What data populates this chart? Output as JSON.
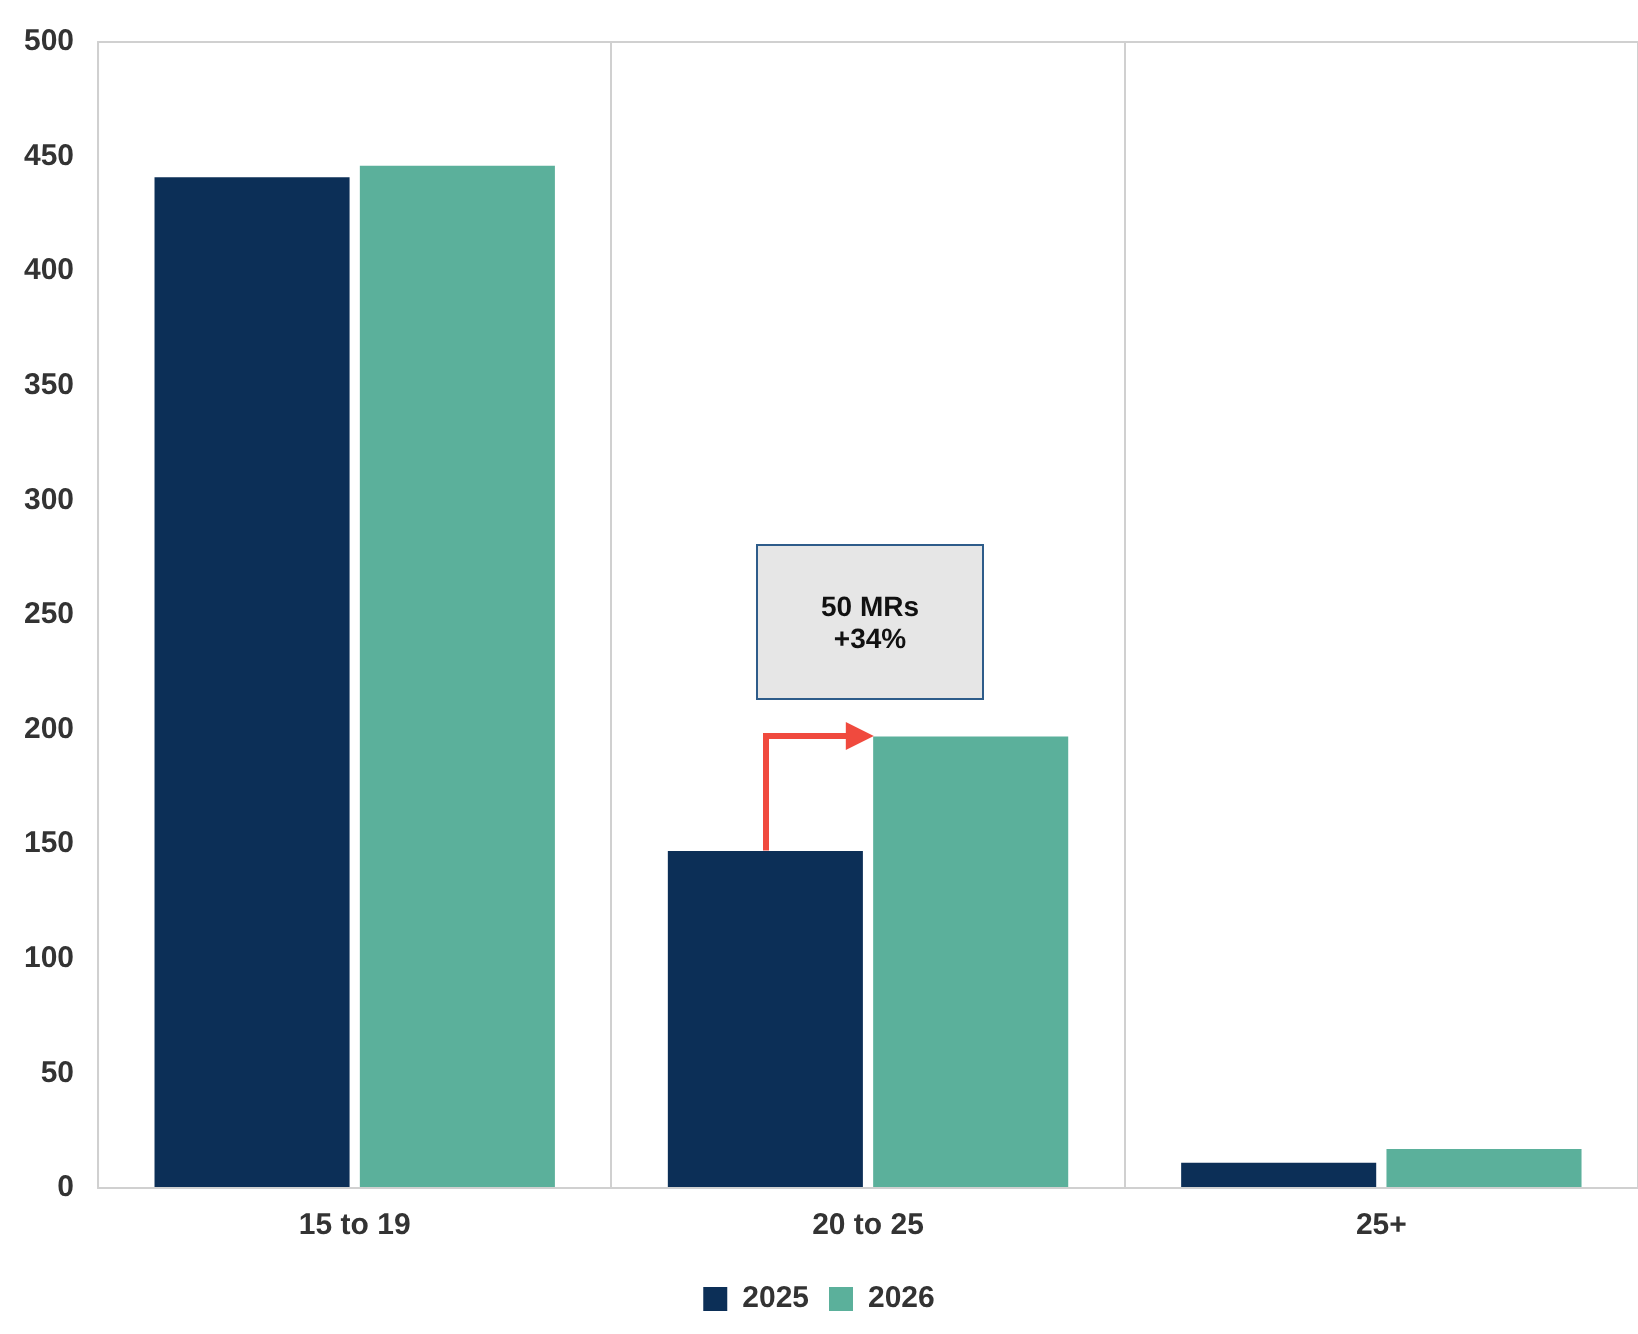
{
  "chart_data": {
    "type": "bar",
    "categories": [
      "15 to 19",
      "20 to 25",
      "25+"
    ],
    "series": [
      {
        "name": "2025",
        "color": "#0c2f57",
        "values": [
          441,
          147,
          11
        ]
      },
      {
        "name": "2026",
        "color": "#5bb09b",
        "values": [
          446,
          197,
          17
        ]
      }
    ],
    "ylim": [
      0,
      500
    ],
    "yticks": [
      0,
      50,
      100,
      150,
      200,
      250,
      300,
      350,
      400,
      450,
      500
    ],
    "grid": "x",
    "legend": "bottom",
    "annotations": [
      "50 MRs\n+34%"
    ]
  }
}
